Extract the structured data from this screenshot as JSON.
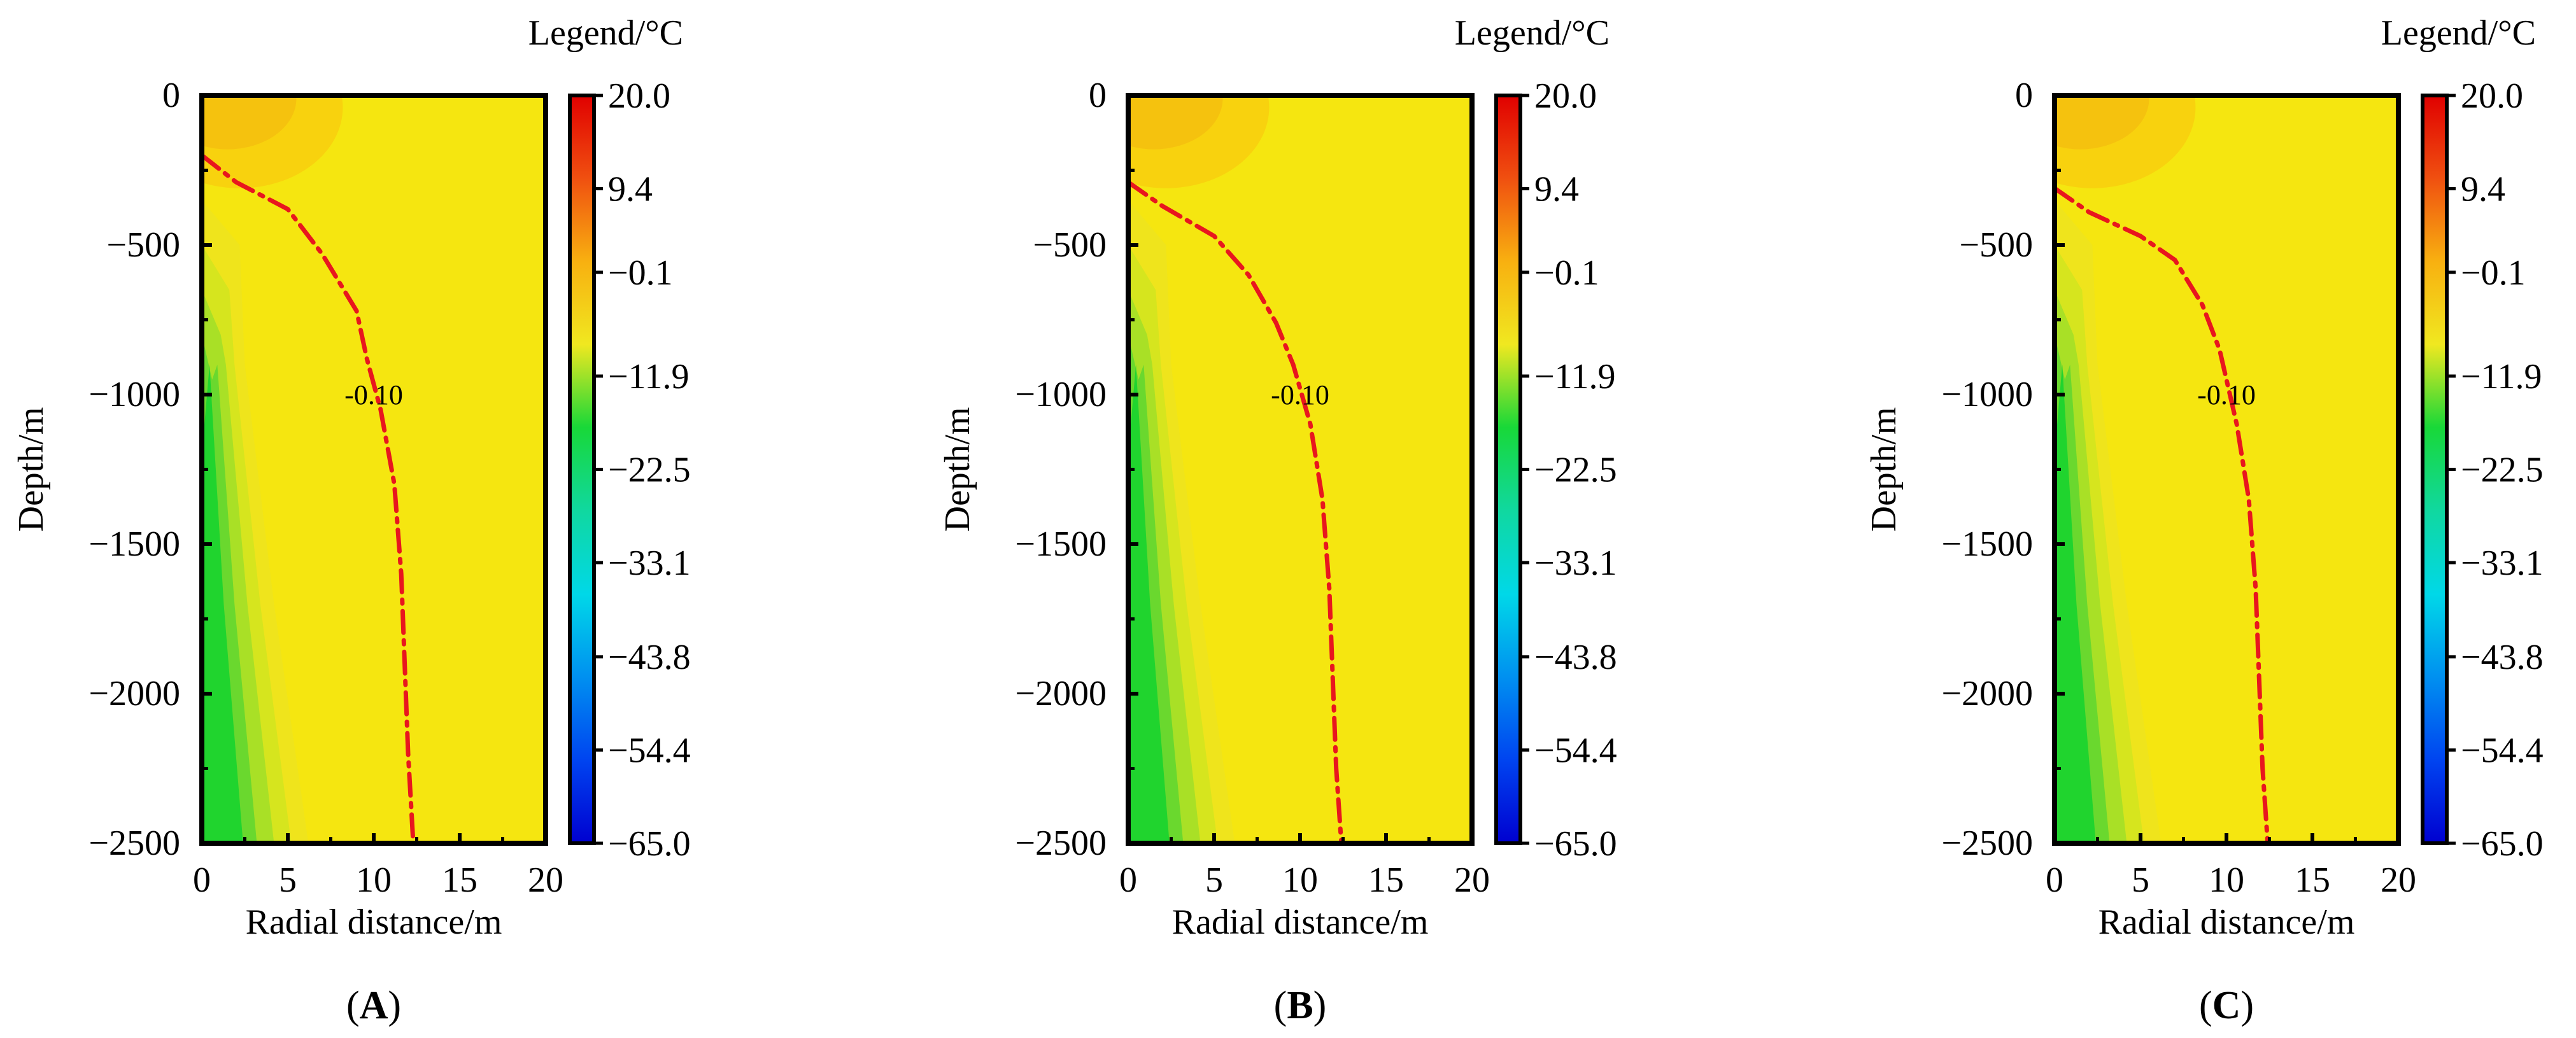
{
  "colors": {
    "field_warm": "#F5E610",
    "field_mid": "#EFE41C",
    "field_cold_1": "#D6E51E",
    "field_cold_2": "#A9E026",
    "field_cold_3": "#6AD82E",
    "field_cold_4": "#20D42E",
    "surface_warm_1": "#F8D20E",
    "surface_warm_2": "#F5C20E",
    "contour": "#E8161E",
    "frame": "#000000"
  },
  "chart_data": [
    {
      "type": "heatmap",
      "panel_label": "A",
      "xlabel": "Radial distance/m",
      "ylabel": "Depth/m",
      "xlim": [
        0,
        20
      ],
      "ylim": [
        -2500,
        0
      ],
      "xticks": [
        0,
        5,
        10,
        15,
        20
      ],
      "yticks": [
        0,
        -500,
        -1000,
        -1500,
        -2000,
        -2500
      ],
      "colorbar": {
        "title": "Legend/°C",
        "ticks": [
          20.0,
          9.4,
          -0.1,
          -11.9,
          -22.5,
          -33.1,
          -43.8,
          -54.4,
          -65.0
        ],
        "tick_labels": [
          "20.0",
          "9.4",
          "−0.1",
          "−11.9",
          "−22.5",
          "−33.1",
          "−43.8",
          "−54.4",
          "−65.0"
        ],
        "colors": [
          "#0000D0",
          "#0044F0",
          "#0090F0",
          "#00D8E8",
          "#10D8A0",
          "#18D838",
          "#F0E820",
          "#F8B010",
          "#F05010",
          "#E00000"
        ]
      },
      "contour": {
        "label": "-0.10",
        "label_at": [
          10,
          -1000
        ],
        "points": [
          [
            0,
            -200
          ],
          [
            2,
            -290
          ],
          [
            5,
            -380
          ],
          [
            7,
            -530
          ],
          [
            9,
            -720
          ],
          [
            9.6,
            -880
          ],
          [
            10.4,
            -1050
          ],
          [
            11.2,
            -1300
          ],
          [
            11.6,
            -1600
          ],
          [
            11.8,
            -1900
          ],
          [
            12,
            -2200
          ],
          [
            12.3,
            -2500
          ]
        ]
      }
    },
    {
      "type": "heatmap",
      "panel_label": "B",
      "xlabel": "Radial distance/m",
      "ylabel": "Depth/m",
      "xlim": [
        0,
        20
      ],
      "ylim": [
        -2500,
        0
      ],
      "xticks": [
        0,
        5,
        10,
        15,
        20
      ],
      "yticks": [
        0,
        -500,
        -1000,
        -1500,
        -2000,
        -2500
      ],
      "colorbar": {
        "title": "Legend/°C",
        "ticks": [
          20.0,
          9.4,
          -0.1,
          -11.9,
          -22.5,
          -33.1,
          -43.8,
          -54.4,
          -65.0
        ],
        "tick_labels": [
          "20.0",
          "9.4",
          "−0.1",
          "−11.9",
          "−22.5",
          "−33.1",
          "−43.8",
          "−54.4",
          "−65.0"
        ],
        "colors": [
          "#0000D0",
          "#0044F0",
          "#0090F0",
          "#00D8E8",
          "#10D8A0",
          "#18D838",
          "#F0E820",
          "#F8B010",
          "#F05010",
          "#E00000"
        ]
      },
      "contour": {
        "label": "-0.10",
        "label_at": [
          10,
          -1000
        ],
        "points": [
          [
            0,
            -290
          ],
          [
            2,
            -370
          ],
          [
            5,
            -470
          ],
          [
            7,
            -600
          ],
          [
            8.6,
            -760
          ],
          [
            9.6,
            -900
          ],
          [
            10.6,
            -1100
          ],
          [
            11.3,
            -1350
          ],
          [
            11.7,
            -1650
          ],
          [
            11.9,
            -1950
          ],
          [
            12.1,
            -2250
          ],
          [
            12.4,
            -2500
          ]
        ]
      }
    },
    {
      "type": "heatmap",
      "panel_label": "C",
      "xlabel": "Radial distance/m",
      "ylabel": "Depth/m",
      "xlim": [
        0,
        20
      ],
      "ylim": [
        -2500,
        0
      ],
      "xticks": [
        0,
        5,
        10,
        15,
        20
      ],
      "yticks": [
        0,
        -500,
        -1000,
        -1500,
        -2000,
        -2500
      ],
      "colorbar": {
        "title": "Legend/°C",
        "ticks": [
          20.0,
          9.4,
          -0.1,
          -11.9,
          -22.5,
          -33.1,
          -43.8,
          -54.4,
          -65.0
        ],
        "tick_labels": [
          "20.0",
          "9.4",
          "−0.1",
          "−11.9",
          "−22.5",
          "−33.1",
          "−43.8",
          "−54.4",
          "−65.0"
        ],
        "colors": [
          "#0000D0",
          "#0044F0",
          "#0090F0",
          "#00D8E8",
          "#10D8A0",
          "#18D838",
          "#F0E820",
          "#F8B010",
          "#F05010",
          "#E00000"
        ]
      },
      "contour": {
        "label": "-0.10",
        "label_at": [
          10,
          -1000
        ],
        "points": [
          [
            0,
            -310
          ],
          [
            2,
            -390
          ],
          [
            5,
            -470
          ],
          [
            7,
            -550
          ],
          [
            8.6,
            -700
          ],
          [
            9.6,
            -850
          ],
          [
            10.6,
            -1100
          ],
          [
            11.3,
            -1350
          ],
          [
            11.7,
            -1650
          ],
          [
            11.9,
            -1950
          ],
          [
            12.1,
            -2250
          ],
          [
            12.4,
            -2500
          ]
        ]
      }
    }
  ]
}
